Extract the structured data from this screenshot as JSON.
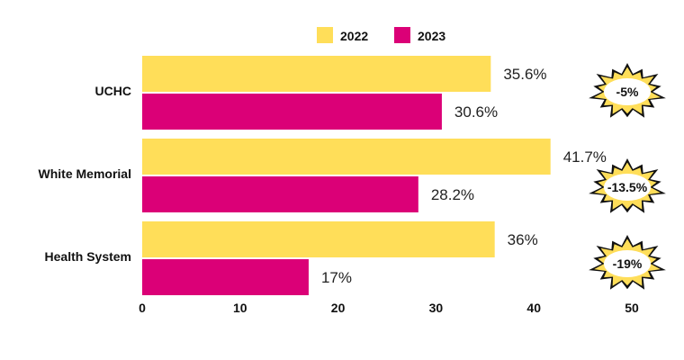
{
  "chart_data": {
    "type": "bar",
    "orientation": "horizontal",
    "categories": [
      "UCHC",
      "White Memorial",
      "Health System"
    ],
    "series": [
      {
        "name": "2022",
        "values": [
          35.6,
          41.7,
          36
        ],
        "labels": [
          "35.6%",
          "41.7%",
          "36%"
        ],
        "color": "#FFDE59"
      },
      {
        "name": "2023",
        "values": [
          30.6,
          28.2,
          17
        ],
        "labels": [
          "30.6%",
          "28.2%",
          "17%"
        ],
        "color": "#DB0077"
      }
    ],
    "annotations": [
      "-5%",
      "-13.5%",
      "-19%"
    ],
    "annotation_style": "starburst",
    "xlim": [
      0,
      50
    ],
    "xticks": [
      0,
      10,
      20,
      30,
      40,
      50
    ],
    "legend": "top",
    "grid": false
  }
}
